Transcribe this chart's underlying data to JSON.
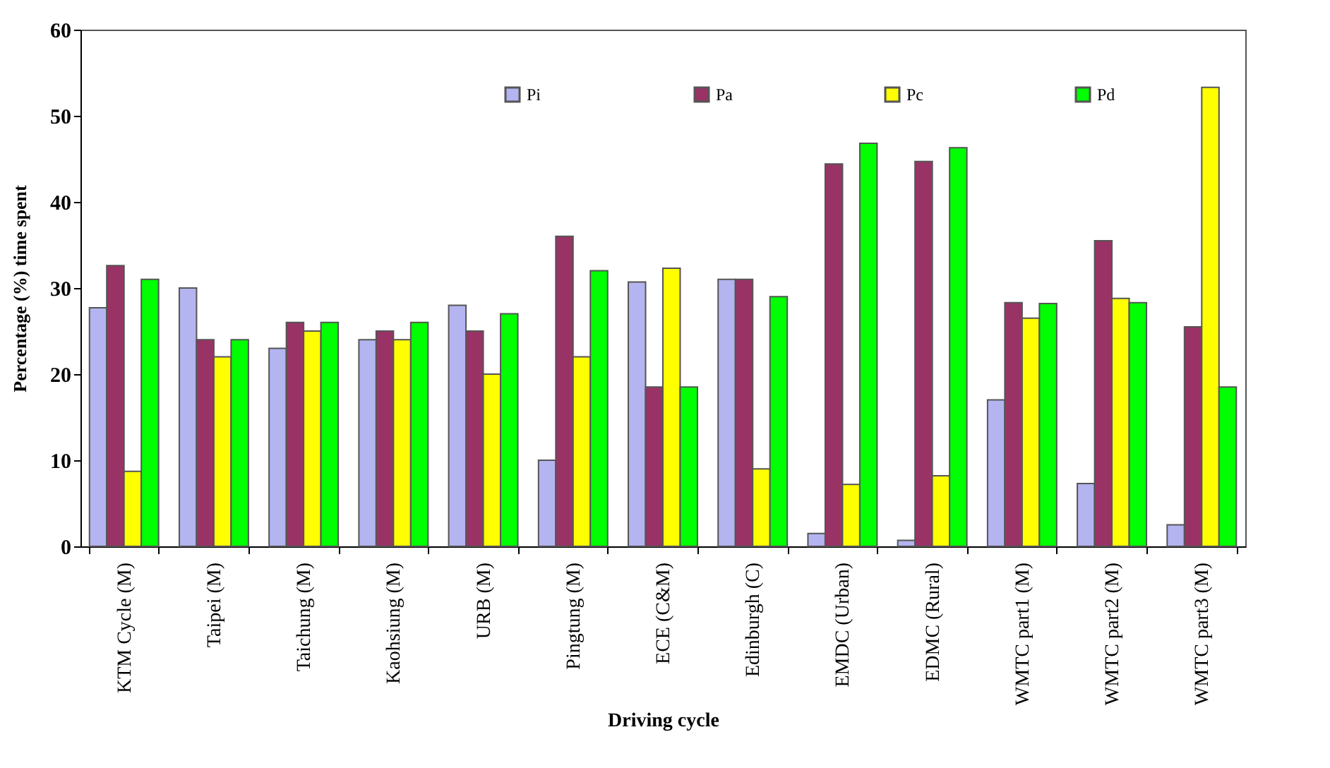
{
  "chart_data": {
    "type": "bar",
    "xlabel": "Driving cycle",
    "ylabel": "Percentage (%) time spent",
    "categories": [
      "KTM Cycle (M)",
      "Taipei (M)",
      "Taichung (M)",
      "Kaohsiung (M)",
      "URB (M)",
      "Pingtung (M)",
      "ECE (C&M)",
      "Edinburgh (C)",
      "EMDC (Urban)",
      "EDMC (Rural)",
      "WMTC part1 (M)",
      "WMTC part2 (M)",
      "WMTC part3 (M)"
    ],
    "series": [
      {
        "name": "Pi",
        "color": "#b4b4f0",
        "values": [
          27.7,
          30,
          23,
          24,
          28,
          10,
          30.7,
          31,
          1.5,
          0.7,
          17,
          7.3,
          2.5
        ]
      },
      {
        "name": "Pa",
        "color": "#993366",
        "values": [
          32.6,
          24,
          26,
          25,
          25,
          36,
          18.5,
          31,
          44.4,
          44.7,
          28.3,
          35.5,
          25.5
        ]
      },
      {
        "name": "Pc",
        "color": "#ffff00",
        "values": [
          8.7,
          22,
          25,
          24,
          20,
          22,
          32.3,
          9,
          7.2,
          8.2,
          26.5,
          28.8,
          53.3
        ]
      },
      {
        "name": "Pd",
        "color": "#00ff00",
        "values": [
          31,
          24,
          26,
          26,
          27,
          32,
          18.5,
          29,
          46.8,
          46.3,
          28.2,
          28.3,
          18.5
        ]
      }
    ],
    "ylim": [
      0,
      60
    ],
    "yticks": [
      0,
      10,
      20,
      30,
      40,
      50,
      60
    ],
    "grid": false,
    "legend": "top"
  }
}
